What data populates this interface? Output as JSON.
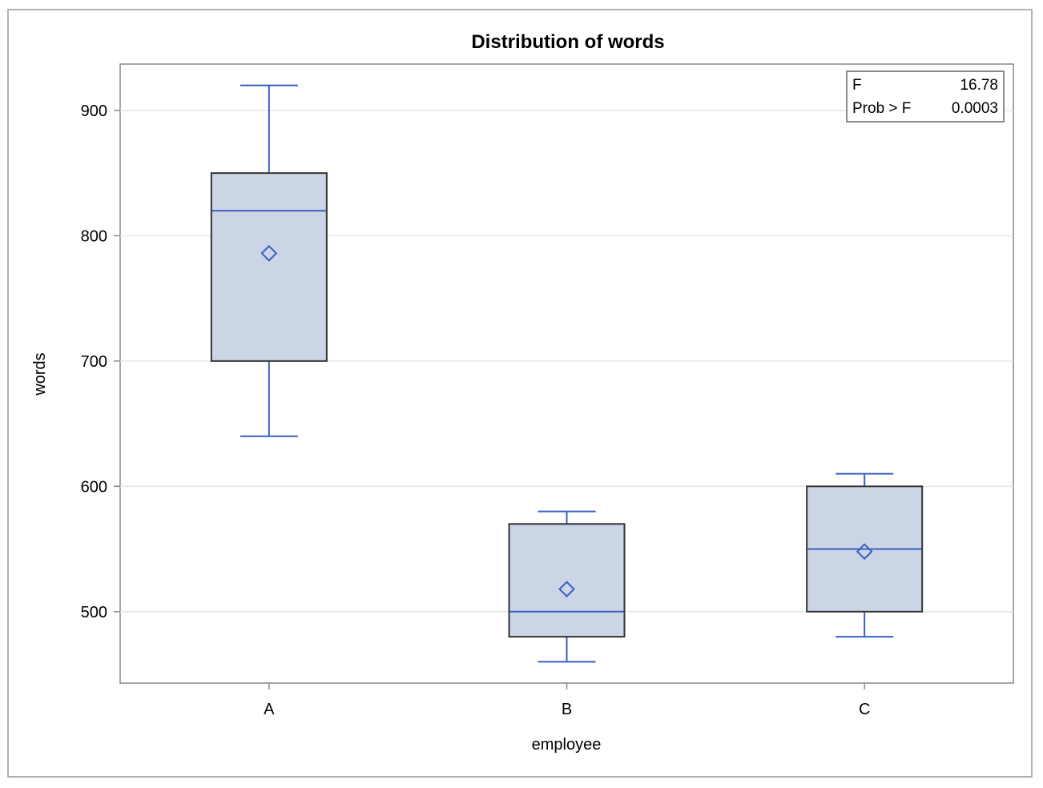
{
  "chart_data": {
    "type": "boxplot",
    "title": "Distribution of words",
    "xlabel": "employee",
    "ylabel": "words",
    "categories": [
      "A",
      "B",
      "C"
    ],
    "boxes": [
      {
        "category": "A",
        "min": 640,
        "q1": 700,
        "median": 820,
        "q3": 850,
        "max": 920,
        "mean": 786
      },
      {
        "category": "B",
        "min": 460,
        "q1": 480,
        "median": 500,
        "q3": 570,
        "max": 580,
        "mean": 518
      },
      {
        "category": "C",
        "min": 480,
        "q1": 500,
        "median": 550,
        "q3": 600,
        "max": 610,
        "mean": 548
      }
    ],
    "yticks": [
      500,
      600,
      700,
      800,
      900
    ],
    "ylim": [
      443,
      937
    ],
    "grid": "horizontal",
    "stats": {
      "f_label": "F",
      "f_value": "16.78",
      "p_label": "Prob > F",
      "p_value": "0.0003"
    },
    "colors": {
      "box_fill": "#cbd5e6",
      "box_outline": "#333333",
      "whisker": "#3b5fc0",
      "median": "#3b5fc0",
      "mean_marker": "#3b5fc0",
      "grid": "#e6e6e6",
      "axis": "#888888"
    }
  }
}
